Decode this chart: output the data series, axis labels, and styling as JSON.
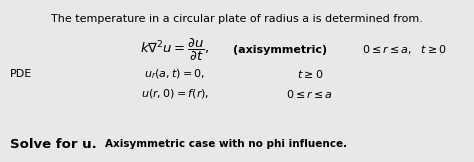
{
  "bg_color": "#e8e8e8",
  "title_text": "The temperature in a circular plate of radius a is determined from.",
  "pde_label": "PDE",
  "solve_label": "Solve for u.",
  "solve_sub": "Axisymmetric case with no phi influence.",
  "eq_main": "$k\\nabla^2 u = \\dfrac{\\partial u}{\\partial t},$",
  "eq_axisym": "(axisymmetric)",
  "eq_range1": "$0 \\leq r \\leq a,\\ \\ t \\geq 0$",
  "eq_bc1": "$u_r(a,t) = 0,$",
  "eq_bc1_cond": "$t \\geq 0$",
  "eq_ic": "$u(r,0) = f(r),$",
  "eq_ic_cond": "$0 \\leq r \\leq a$",
  "title_fontsize": 8.0,
  "eq_fontsize": 9.5,
  "text_fontsize": 8.0,
  "small_fontsize": 7.5
}
